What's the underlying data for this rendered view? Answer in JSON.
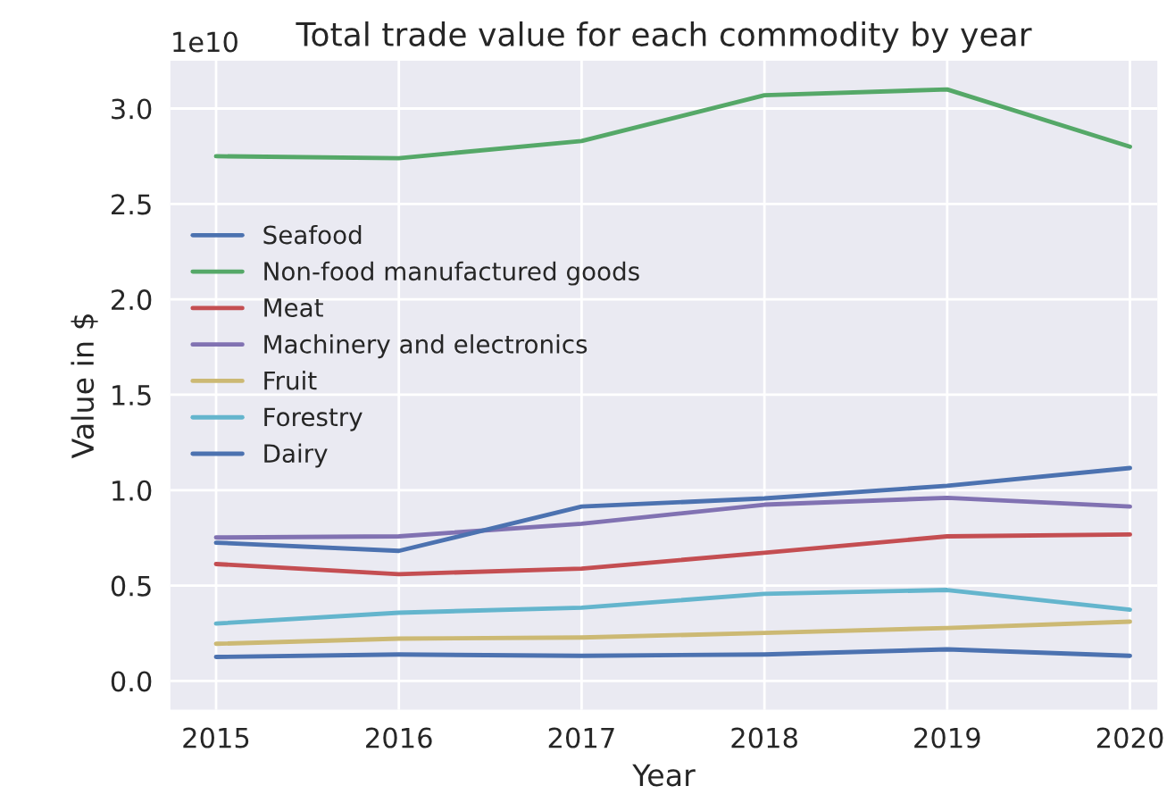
{
  "chart_data": {
    "type": "line",
    "title": "Total trade value for each commodity by year",
    "xlabel": "Year",
    "ylabel": "Value in $",
    "annotations": [
      "1e10"
    ],
    "x": [
      2015,
      2016,
      2017,
      2018,
      2019,
      2020
    ],
    "series": [
      {
        "name": "Seafood",
        "color": "#4c72b0",
        "values": [
          0.126,
          0.139,
          0.132,
          0.139,
          0.166,
          0.132
        ]
      },
      {
        "name": "Non-food manufactured goods",
        "color": "#55a868",
        "values": [
          2.75,
          2.74,
          2.83,
          3.07,
          3.1,
          2.8
        ]
      },
      {
        "name": "Meat",
        "color": "#c44e52",
        "values": [
          0.613,
          0.56,
          0.589,
          0.672,
          0.758,
          0.768
        ]
      },
      {
        "name": "Machinery and electronics",
        "color": "#8172b2",
        "values": [
          0.752,
          0.758,
          0.824,
          0.924,
          0.96,
          0.914
        ]
      },
      {
        "name": "Fruit",
        "color": "#ccb974",
        "values": [
          0.195,
          0.222,
          0.228,
          0.252,
          0.278,
          0.311
        ]
      },
      {
        "name": "Forestry",
        "color": "#64b5cd",
        "values": [
          0.301,
          0.358,
          0.384,
          0.457,
          0.477,
          0.374
        ]
      },
      {
        "name": "Dairy",
        "color": "#4c72b0",
        "values": [
          0.725,
          0.682,
          0.914,
          0.957,
          1.023,
          1.116
        ]
      }
    ],
    "xlim": [
      2014.75,
      2020.15
    ],
    "ylim": [
      -0.15,
      3.25
    ],
    "xticks": [
      2015,
      2016,
      2017,
      2018,
      2019,
      2020
    ],
    "yticks": [
      {
        "value": 0,
        "label": "0.0"
      },
      {
        "value": 0.5,
        "label": "0.5"
      },
      {
        "value": 1,
        "label": "1.0"
      },
      {
        "value": 1.5,
        "label": "1.5"
      },
      {
        "value": 2,
        "label": "2.0"
      },
      {
        "value": 2.5,
        "label": "2.5"
      },
      {
        "value": 3,
        "label": "3.0"
      }
    ],
    "grid": true,
    "legend": "left",
    "line_style": "solid",
    "marker": "none"
  }
}
